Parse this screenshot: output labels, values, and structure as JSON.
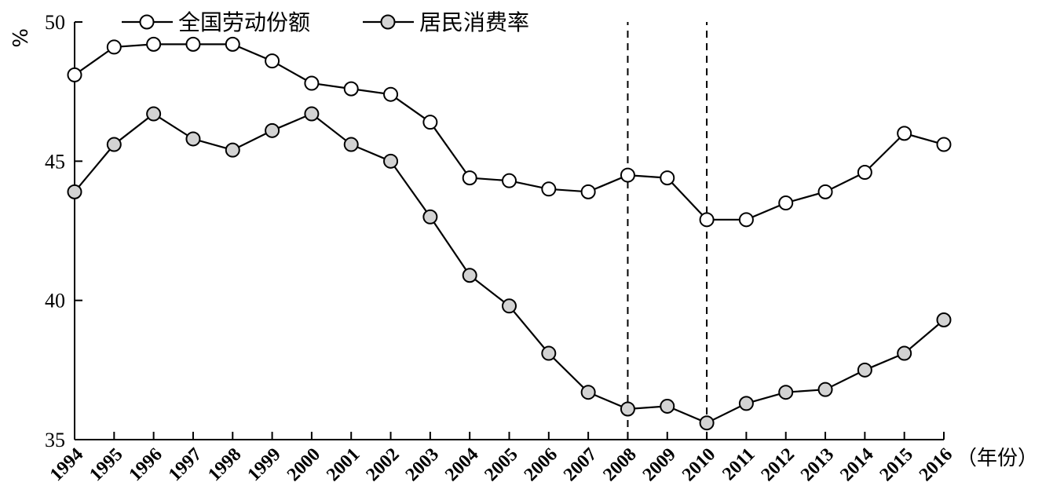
{
  "chart_data": {
    "type": "line",
    "ylabel": "%",
    "xlabel": "（年份）",
    "ylim": [
      35,
      50
    ],
    "yticks": [
      35,
      40,
      45,
      50
    ],
    "x": [
      1994,
      1995,
      1996,
      1997,
      1998,
      1999,
      2000,
      2001,
      2002,
      2003,
      2004,
      2005,
      2006,
      2007,
      2008,
      2009,
      2010,
      2011,
      2012,
      2013,
      2014,
      2015,
      2016
    ],
    "series": [
      {
        "name": "全国劳动份额",
        "marker_fill": "#ffffff",
        "values": [
          48.1,
          49.1,
          49.2,
          49.2,
          49.2,
          48.6,
          47.8,
          47.6,
          47.4,
          46.4,
          44.4,
          44.3,
          44.0,
          43.9,
          44.5,
          44.4,
          42.9,
          42.9,
          43.5,
          43.9,
          44.6,
          46.0,
          45.6
        ]
      },
      {
        "name": "居民消费率",
        "marker_fill": "#d3d3d3",
        "values": [
          43.9,
          45.6,
          46.7,
          45.8,
          45.4,
          46.1,
          46.7,
          45.6,
          45.0,
          43.0,
          40.9,
          39.8,
          38.1,
          36.7,
          36.1,
          36.2,
          35.6,
          36.3,
          36.7,
          36.8,
          37.5,
          38.1,
          39.3
        ]
      }
    ],
    "reference_lines_x": [
      2008,
      2010
    ],
    "legend_position": "top-left"
  }
}
